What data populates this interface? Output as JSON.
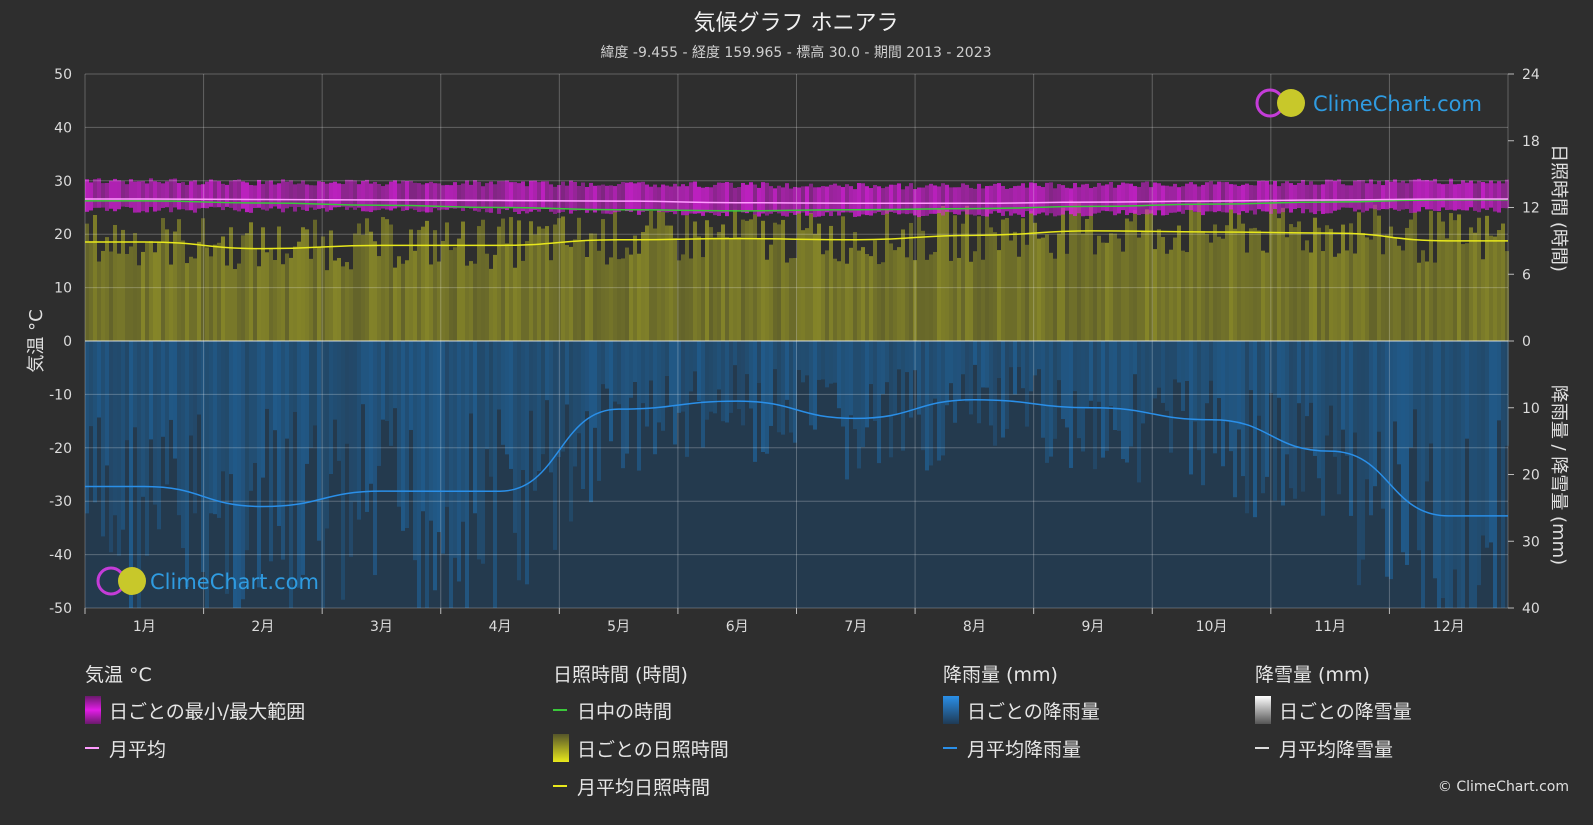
{
  "title": "気候グラフ ホニアラ",
  "subtitle": "緯度 -9.455 - 経度 159.965 - 標高 30.0 - 期間 2013 - 2023",
  "brand": "ClimeChart.com",
  "copyright": "© ClimeChart.com",
  "colors": {
    "background": "#2e2e2e",
    "temp_range": "#e21de6",
    "temp_mean": "#ff9cff",
    "daylight": "#3ac83a",
    "sunshine_fill": "#8f8f28",
    "sunshine_mean": "#e8e81c",
    "rain_fill": "#1f6fb0",
    "rain_mean": "#2a8fe8",
    "snow": "#dddddd"
  },
  "chart_data": {
    "type": "line",
    "categories": [
      "1月",
      "2月",
      "3月",
      "4月",
      "5月",
      "6月",
      "7月",
      "8月",
      "9月",
      "10月",
      "11月",
      "12月"
    ],
    "left_axis": {
      "label": "気温 °C",
      "range": [
        -50,
        50
      ],
      "ticks": [
        "50",
        "40",
        "30",
        "20",
        "10",
        "0",
        "-10",
        "-20",
        "-30",
        "-40",
        "-50"
      ]
    },
    "right_axis_top": {
      "label": "日照時間 (時間)",
      "range": [
        0,
        24
      ],
      "ticks": [
        "24",
        "18",
        "12",
        "6",
        "0"
      ]
    },
    "right_axis_bottom": {
      "label": "降雨量 / 降雪量 (mm)",
      "range": [
        0,
        40
      ],
      "ticks": [
        "10",
        "20",
        "30",
        "40"
      ]
    },
    "series": [
      {
        "name": "日中の時間",
        "axis": "sunshine",
        "values": [
          12.6,
          12.4,
          12.2,
          12.0,
          11.8,
          11.7,
          11.8,
          11.9,
          12.1,
          12.3,
          12.5,
          12.7
        ]
      },
      {
        "name": "月平均日照時間",
        "axis": "sunshine",
        "values": [
          8.9,
          8.3,
          8.6,
          8.6,
          9.1,
          9.2,
          9.1,
          9.5,
          9.9,
          9.8,
          9.7,
          9.0
        ]
      },
      {
        "name": "月平均",
        "axis": "temperature",
        "values": [
          26.6,
          26.5,
          26.4,
          26.3,
          26.2,
          25.9,
          25.8,
          25.8,
          26.0,
          26.2,
          26.4,
          26.6
        ]
      },
      {
        "name": "日ごとの最小/最大範囲",
        "axis": "temperature",
        "min": [
          24.0,
          24.0,
          24.0,
          23.8,
          23.6,
          23.3,
          23.1,
          23.1,
          23.3,
          23.5,
          23.8,
          24.0
        ],
        "max": [
          30.5,
          30.3,
          30.2,
          30.1,
          30.0,
          29.8,
          29.6,
          29.6,
          29.8,
          30.0,
          30.3,
          30.4
        ]
      },
      {
        "name": "月平均降雨量",
        "axis": "rain",
        "values": [
          21.8,
          24.8,
          22.5,
          22.5,
          10.2,
          9.0,
          11.6,
          8.8,
          10.0,
          11.8,
          16.5,
          26.2
        ]
      }
    ]
  },
  "legend": {
    "temp": {
      "heading": "気温 °C",
      "items": [
        "日ごとの最小/最大範囲",
        "月平均"
      ]
    },
    "sun": {
      "heading": "日照時間 (時間)",
      "items": [
        "日中の時間",
        "日ごとの日照時間",
        "月平均日照時間"
      ]
    },
    "rain": {
      "heading": "降雨量 (mm)",
      "items": [
        "日ごとの降雨量",
        "月平均降雨量"
      ]
    },
    "snow": {
      "heading": "降雪量 (mm)",
      "items": [
        "日ごとの降雪量",
        "月平均降雪量"
      ]
    }
  }
}
